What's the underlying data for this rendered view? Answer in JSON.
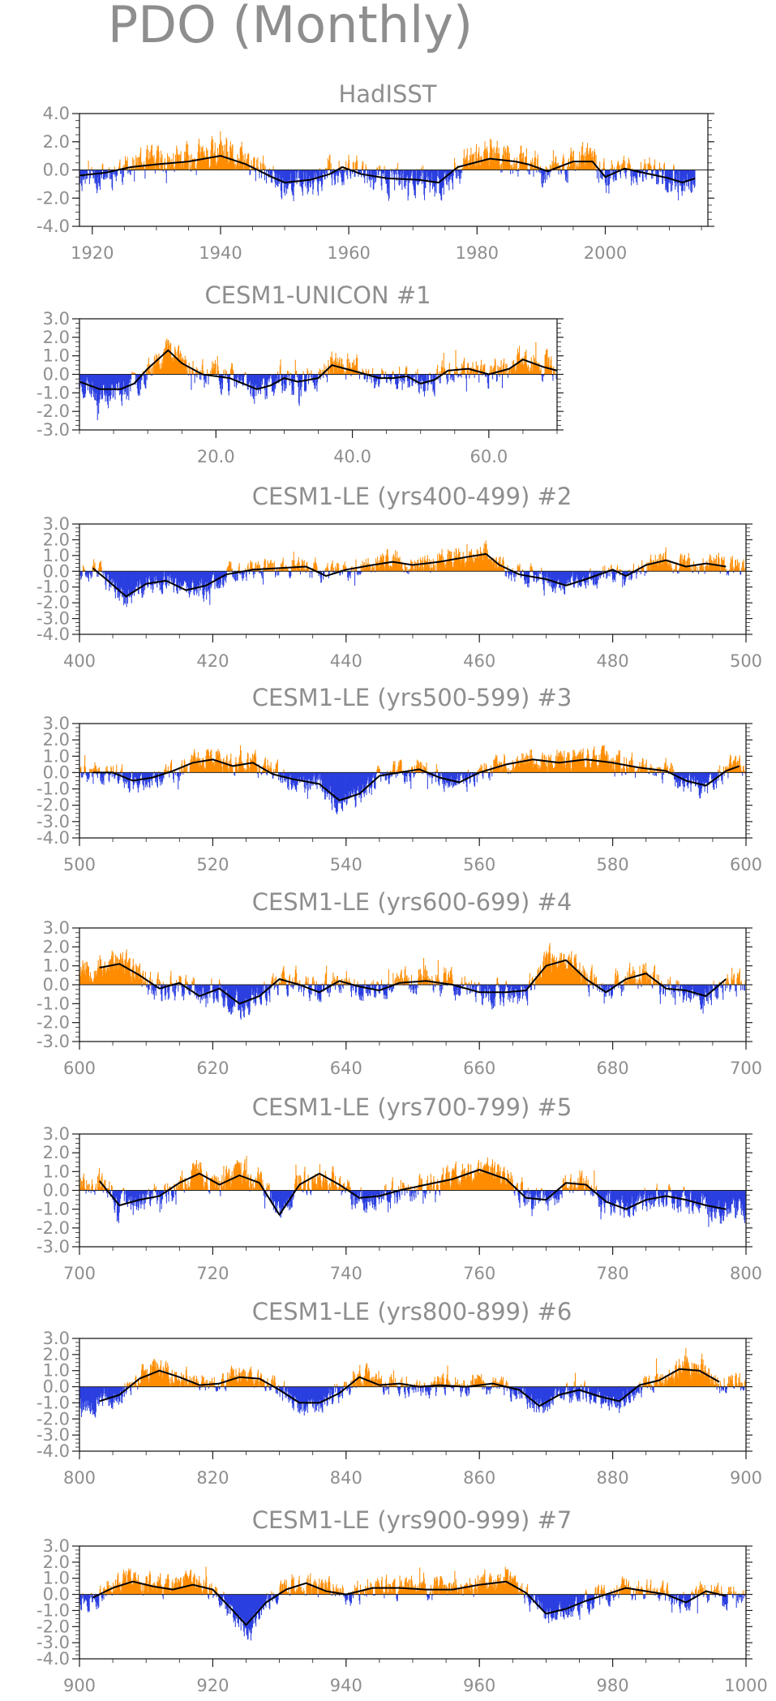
{
  "figure": {
    "title": "PDO (Monthly)",
    "colors": {
      "positive": "#ff8c00",
      "negative": "#2b3fe0",
      "smooth": "#000000",
      "frame": "#202020",
      "text": "#8e8e8e"
    }
  },
  "chart_data": [
    {
      "type": "bar",
      "title": "HadISST",
      "x_range": [
        1918,
        2016
      ],
      "ylim": [
        -4,
        4
      ],
      "yticks": [
        "4.0",
        "2.0",
        "0.0",
        "-2.0",
        "-4.0"
      ],
      "ytick_values": [
        4,
        2,
        0,
        -2,
        -4
      ],
      "xticks": [
        "1920",
        "1940",
        "1960",
        "1980",
        "2000"
      ],
      "xtick_values": [
        1920,
        1940,
        1960,
        1980,
        2000
      ],
      "data_start": 1918,
      "data_end": 2014,
      "series_scale": 1.25,
      "seed": 11,
      "smoothed_anomaly": [
        [
          1918,
          -0.4
        ],
        [
          1922,
          -0.2
        ],
        [
          1926,
          0.2
        ],
        [
          1930,
          0.4
        ],
        [
          1935,
          0.6
        ],
        [
          1940,
          1.0
        ],
        [
          1944,
          0.4
        ],
        [
          1948,
          -0.5
        ],
        [
          1950,
          -0.9
        ],
        [
          1954,
          -0.7
        ],
        [
          1957,
          -0.3
        ],
        [
          1959,
          0.2
        ],
        [
          1962,
          -0.3
        ],
        [
          1966,
          -0.6
        ],
        [
          1971,
          -0.7
        ],
        [
          1974,
          -0.9
        ],
        [
          1977,
          0.2
        ],
        [
          1982,
          0.8
        ],
        [
          1986,
          0.6
        ],
        [
          1988,
          0.4
        ],
        [
          1991,
          -0.1
        ],
        [
          1995,
          0.6
        ],
        [
          1998,
          0.6
        ],
        [
          2000,
          -0.5
        ],
        [
          2003,
          0.1
        ],
        [
          2006,
          -0.2
        ],
        [
          2010,
          -0.6
        ],
        [
          2012,
          -0.9
        ],
        [
          2014,
          -0.6
        ]
      ]
    },
    {
      "type": "bar",
      "title": "CESM1-UNICON                #1",
      "x_range": [
        0,
        70
      ],
      "ylim": [
        -3,
        3
      ],
      "yticks": [
        "3.0",
        "2.0",
        "1.0",
        "0.0",
        "-1.0",
        "-2.0",
        "-3.0"
      ],
      "ytick_values": [
        3,
        2,
        1,
        0,
        -1,
        -2,
        -3
      ],
      "xticks": [
        "20.0",
        "40.0",
        "60.0"
      ],
      "xtick_values": [
        20,
        40,
        60
      ],
      "data_start": 0,
      "data_end": 70,
      "series_scale": 0.8,
      "seed": 23,
      "smoothed_anomaly": [
        [
          0,
          -0.4
        ],
        [
          3,
          -0.8
        ],
        [
          6,
          -0.8
        ],
        [
          8,
          -0.5
        ],
        [
          10,
          0.3
        ],
        [
          13,
          1.3
        ],
        [
          15,
          0.6
        ],
        [
          18,
          0.0
        ],
        [
          22,
          -0.2
        ],
        [
          26,
          -0.8
        ],
        [
          28,
          -0.6
        ],
        [
          30,
          -0.2
        ],
        [
          32,
          -0.4
        ],
        [
          35,
          -0.2
        ],
        [
          37,
          0.5
        ],
        [
          40,
          0.2
        ],
        [
          44,
          -0.2
        ],
        [
          46,
          -0.2
        ],
        [
          48,
          -0.1
        ],
        [
          50,
          -0.5
        ],
        [
          52,
          -0.3
        ],
        [
          54,
          0.2
        ],
        [
          57,
          0.3
        ],
        [
          60,
          0.0
        ],
        [
          63,
          0.3
        ],
        [
          65,
          0.8
        ],
        [
          68,
          0.4
        ],
        [
          70,
          0.2
        ]
      ]
    },
    {
      "type": "bar",
      "title": "CESM1-LE (yrs400-499) #2",
      "x_range": [
        400,
        500
      ],
      "ylim": [
        -4,
        3
      ],
      "yticks": [
        "3.0",
        "2.0",
        "1.0",
        "0.0",
        "-1.0",
        "-2.0",
        "-3.0",
        "-4.0"
      ],
      "ytick_values": [
        3,
        2,
        1,
        0,
        -1,
        -2,
        -3,
        -4
      ],
      "xticks": [
        "400",
        "420",
        "440",
        "460",
        "480",
        "500"
      ],
      "xtick_values": [
        400,
        420,
        440,
        460,
        480,
        500
      ],
      "data_start": 400,
      "data_end": 500,
      "series_scale": 0.75,
      "seed": 37,
      "smoothed_anomaly": [
        [
          402,
          0.2
        ],
        [
          404,
          -0.5
        ],
        [
          407,
          -1.6
        ],
        [
          410,
          -0.8
        ],
        [
          413,
          -0.6
        ],
        [
          416,
          -1.2
        ],
        [
          419,
          -0.9
        ],
        [
          422,
          -0.2
        ],
        [
          426,
          0.1
        ],
        [
          430,
          0.2
        ],
        [
          434,
          0.3
        ],
        [
          437,
          -0.3
        ],
        [
          440,
          0.1
        ],
        [
          444,
          0.4
        ],
        [
          447,
          0.6
        ],
        [
          450,
          0.4
        ],
        [
          454,
          0.6
        ],
        [
          458,
          0.9
        ],
        [
          461,
          1.1
        ],
        [
          463,
          0.4
        ],
        [
          466,
          -0.2
        ],
        [
          470,
          -0.5
        ],
        [
          473,
          -0.9
        ],
        [
          476,
          -0.5
        ],
        [
          480,
          0.1
        ],
        [
          482,
          -0.3
        ],
        [
          485,
          0.4
        ],
        [
          488,
          0.7
        ],
        [
          491,
          0.3
        ],
        [
          494,
          0.5
        ],
        [
          497,
          0.3
        ]
      ]
    },
    {
      "type": "bar",
      "title": "CESM1-LE (yrs500-599) #3",
      "x_range": [
        500,
        600
      ],
      "ylim": [
        -4,
        3
      ],
      "yticks": [
        "3.0",
        "2.0",
        "1.0",
        "0.0",
        "-1.0",
        "-2.0",
        "-3.0",
        "-4.0"
      ],
      "ytick_values": [
        3,
        2,
        1,
        0,
        -1,
        -2,
        -3,
        -4
      ],
      "xticks": [
        "500",
        "520",
        "540",
        "560",
        "580",
        "600"
      ],
      "xtick_values": [
        500,
        520,
        540,
        560,
        580,
        600
      ],
      "data_start": 500,
      "data_end": 600,
      "series_scale": 0.75,
      "seed": 41,
      "smoothed_anomaly": [
        [
          502,
          0.0
        ],
        [
          505,
          0.0
        ],
        [
          508,
          -0.5
        ],
        [
          511,
          -0.3
        ],
        [
          514,
          0.1
        ],
        [
          517,
          0.6
        ],
        [
          520,
          0.8
        ],
        [
          523,
          0.4
        ],
        [
          526,
          0.6
        ],
        [
          529,
          -0.1
        ],
        [
          532,
          -0.4
        ],
        [
          536,
          -0.7
        ],
        [
          539,
          -1.7
        ],
        [
          542,
          -1.3
        ],
        [
          545,
          -0.2
        ],
        [
          548,
          0.0
        ],
        [
          551,
          0.2
        ],
        [
          554,
          -0.3
        ],
        [
          557,
          -0.6
        ],
        [
          560,
          0.0
        ],
        [
          564,
          0.5
        ],
        [
          568,
          0.8
        ],
        [
          572,
          0.6
        ],
        [
          576,
          0.8
        ],
        [
          580,
          0.6
        ],
        [
          584,
          0.3
        ],
        [
          588,
          0.1
        ],
        [
          591,
          -0.5
        ],
        [
          594,
          -0.8
        ],
        [
          597,
          0.1
        ],
        [
          599,
          0.4
        ]
      ]
    },
    {
      "type": "bar",
      "title": "CESM1-LE (yrs600-699) #4",
      "x_range": [
        600,
        700
      ],
      "ylim": [
        -3,
        3
      ],
      "yticks": [
        "3.0",
        "2.0",
        "1.0",
        "0.0",
        "-1.0",
        "-2.0",
        "-3.0"
      ],
      "ytick_values": [
        3,
        2,
        1,
        0,
        -1,
        -2,
        -3
      ],
      "xticks": [
        "600",
        "620",
        "640",
        "660",
        "680",
        "700"
      ],
      "xtick_values": [
        600,
        620,
        640,
        660,
        680,
        700
      ],
      "data_start": 600,
      "data_end": 700,
      "series_scale": 0.8,
      "seed": 53,
      "smoothed_anomaly": [
        [
          603,
          0.9
        ],
        [
          606,
          1.1
        ],
        [
          609,
          0.5
        ],
        [
          612,
          -0.2
        ],
        [
          615,
          0.1
        ],
        [
          618,
          -0.6
        ],
        [
          621,
          -0.2
        ],
        [
          624,
          -1.0
        ],
        [
          627,
          -0.6
        ],
        [
          630,
          0.3
        ],
        [
          633,
          0.0
        ],
        [
          636,
          -0.4
        ],
        [
          639,
          0.2
        ],
        [
          642,
          -0.1
        ],
        [
          645,
          -0.3
        ],
        [
          648,
          0.1
        ],
        [
          652,
          0.2
        ],
        [
          656,
          0.0
        ],
        [
          660,
          -0.4
        ],
        [
          664,
          -0.4
        ],
        [
          667,
          -0.3
        ],
        [
          670,
          1.0
        ],
        [
          673,
          1.3
        ],
        [
          676,
          0.3
        ],
        [
          679,
          -0.4
        ],
        [
          682,
          0.3
        ],
        [
          685,
          0.6
        ],
        [
          688,
          -0.2
        ],
        [
          691,
          -0.3
        ],
        [
          694,
          -0.6
        ],
        [
          697,
          0.3
        ]
      ]
    },
    {
      "type": "bar",
      "title": "CESM1-LE (yrs700-799) #5",
      "x_range": [
        700,
        800
      ],
      "ylim": [
        -3,
        3
      ],
      "yticks": [
        "3.0",
        "2.0",
        "1.0",
        "0.0",
        "-1.0",
        "-2.0",
        "-3.0"
      ],
      "ytick_values": [
        3,
        2,
        1,
        0,
        -1,
        -2,
        -3
      ],
      "xticks": [
        "700",
        "720",
        "740",
        "760",
        "780",
        "800"
      ],
      "xtick_values": [
        700,
        720,
        740,
        760,
        780,
        800
      ],
      "data_start": 700,
      "data_end": 800,
      "series_scale": 0.75,
      "seed": 67,
      "smoothed_anomaly": [
        [
          703,
          0.5
        ],
        [
          706,
          -0.8
        ],
        [
          709,
          -0.5
        ],
        [
          712,
          -0.3
        ],
        [
          715,
          0.4
        ],
        [
          718,
          0.9
        ],
        [
          721,
          0.3
        ],
        [
          724,
          0.8
        ],
        [
          727,
          0.4
        ],
        [
          730,
          -1.3
        ],
        [
          733,
          0.3
        ],
        [
          736,
          0.9
        ],
        [
          739,
          0.3
        ],
        [
          742,
          -0.4
        ],
        [
          745,
          -0.3
        ],
        [
          748,
          0.0
        ],
        [
          752,
          0.3
        ],
        [
          756,
          0.6
        ],
        [
          760,
          1.1
        ],
        [
          764,
          0.6
        ],
        [
          767,
          -0.4
        ],
        [
          770,
          -0.5
        ],
        [
          773,
          0.4
        ],
        [
          776,
          0.3
        ],
        [
          779,
          -0.6
        ],
        [
          782,
          -1.0
        ],
        [
          785,
          -0.5
        ],
        [
          788,
          -0.3
        ],
        [
          791,
          -0.5
        ],
        [
          794,
          -0.8
        ],
        [
          797,
          -1.0
        ]
      ]
    },
    {
      "type": "bar",
      "title": "CESM1-LE (yrs800-899) #6",
      "x_range": [
        800,
        900
      ],
      "ylim": [
        -4,
        3
      ],
      "yticks": [
        "3.0",
        "2.0",
        "1.0",
        "0.0",
        "-1.0",
        "-2.0",
        "-3.0",
        "-4.0"
      ],
      "ytick_values": [
        3,
        2,
        1,
        0,
        -1,
        -2,
        -3,
        -4
      ],
      "xticks": [
        "800",
        "820",
        "840",
        "860",
        "880",
        "900"
      ],
      "xtick_values": [
        800,
        820,
        840,
        860,
        880,
        900
      ],
      "data_start": 800,
      "data_end": 900,
      "series_scale": 0.75,
      "seed": 79,
      "smoothed_anomaly": [
        [
          803,
          -0.9
        ],
        [
          806,
          -0.5
        ],
        [
          809,
          0.5
        ],
        [
          812,
          1.0
        ],
        [
          815,
          0.6
        ],
        [
          818,
          0.1
        ],
        [
          821,
          0.2
        ],
        [
          824,
          0.6
        ],
        [
          827,
          0.5
        ],
        [
          830,
          -0.2
        ],
        [
          833,
          -1.0
        ],
        [
          836,
          -1.0
        ],
        [
          839,
          -0.4
        ],
        [
          842,
          0.6
        ],
        [
          845,
          0.1
        ],
        [
          848,
          0.2
        ],
        [
          851,
          0.0
        ],
        [
          854,
          0.1
        ],
        [
          858,
          0.0
        ],
        [
          862,
          0.2
        ],
        [
          866,
          -0.2
        ],
        [
          869,
          -1.2
        ],
        [
          872,
          -0.5
        ],
        [
          875,
          -0.2
        ],
        [
          878,
          -0.6
        ],
        [
          881,
          -0.9
        ],
        [
          884,
          0.1
        ],
        [
          887,
          0.4
        ],
        [
          890,
          1.1
        ],
        [
          893,
          1.0
        ],
        [
          896,
          0.3
        ]
      ]
    },
    {
      "type": "bar",
      "title": "CESM1-LE (yrs900-999) #7",
      "x_range": [
        900,
        1000
      ],
      "ylim": [
        -4,
        3
      ],
      "yticks": [
        "3.0",
        "2.0",
        "1.0",
        "0.0",
        "-1.0",
        "-2.0",
        "-3.0",
        "-4.0"
      ],
      "ytick_values": [
        3,
        2,
        1,
        0,
        -1,
        -2,
        -3,
        -4
      ],
      "xticks": [
        "900",
        "920",
        "940",
        "960",
        "980",
        "1000"
      ],
      "xtick_values": [
        900,
        920,
        940,
        960,
        980,
        1000
      ],
      "data_start": 900,
      "data_end": 1000,
      "series_scale": 0.75,
      "seed": 97,
      "smoothed_anomaly": [
        [
          902,
          -0.2
        ],
        [
          905,
          0.4
        ],
        [
          908,
          0.8
        ],
        [
          911,
          0.5
        ],
        [
          914,
          0.3
        ],
        [
          917,
          0.6
        ],
        [
          920,
          0.3
        ],
        [
          923,
          -1.0
        ],
        [
          925,
          -1.9
        ],
        [
          928,
          -0.5
        ],
        [
          931,
          0.3
        ],
        [
          934,
          0.7
        ],
        [
          937,
          0.2
        ],
        [
          940,
          0.0
        ],
        [
          944,
          0.4
        ],
        [
          948,
          0.4
        ],
        [
          952,
          0.3
        ],
        [
          956,
          0.3
        ],
        [
          960,
          0.6
        ],
        [
          964,
          0.8
        ],
        [
          967,
          0.1
        ],
        [
          970,
          -1.2
        ],
        [
          973,
          -0.9
        ],
        [
          976,
          -0.4
        ],
        [
          979,
          0.0
        ],
        [
          982,
          0.4
        ],
        [
          985,
          0.2
        ],
        [
          988,
          0.0
        ],
        [
          991,
          -0.5
        ],
        [
          994,
          0.2
        ],
        [
          997,
          -0.1
        ]
      ]
    }
  ]
}
